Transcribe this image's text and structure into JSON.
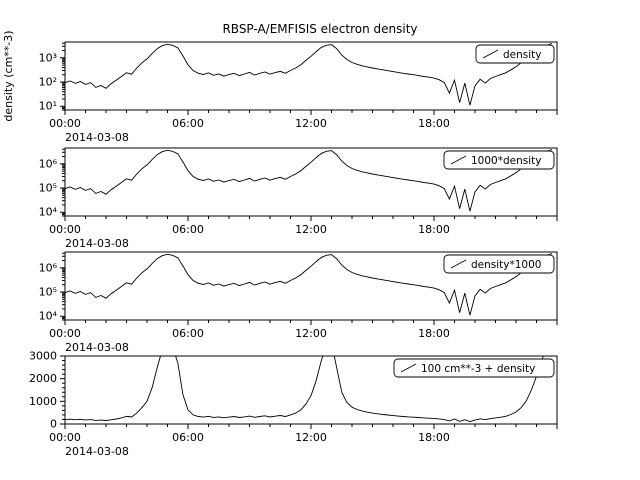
{
  "title": "RBSP-A/EMFISIS  electron density",
  "colors": {
    "line": "#000000",
    "background": "#ffffff"
  },
  "chart_data": {
    "type": "line",
    "title": "RBSP-A/EMFISIS  electron density",
    "x_date_label": "2014-03-08",
    "x_unit": "time (hours UT)",
    "x_start_hours": 0,
    "x_step_hours": 0.25,
    "x_range_hours": [
      0,
      24
    ],
    "x_ticks": [
      {
        "hour": 0,
        "label": "00:00"
      },
      {
        "hour": 6,
        "label": "06:00"
      },
      {
        "hour": 12,
        "label": "12:00"
      },
      {
        "hour": 18,
        "label": "18:00"
      }
    ],
    "density_cm3": [
      95,
      110,
      88,
      105,
      80,
      95,
      60,
      72,
      55,
      85,
      120,
      170,
      240,
      210,
      380,
      620,
      900,
      1500,
      2400,
      3200,
      3600,
      3300,
      2600,
      1200,
      520,
      300,
      230,
      205,
      240,
      190,
      215,
      175,
      205,
      230,
      185,
      215,
      250,
      195,
      230,
      260,
      210,
      245,
      275,
      230,
      300,
      380,
      520,
      780,
      1150,
      1800,
      2700,
      3300,
      3500,
      2400,
      1300,
      850,
      640,
      540,
      470,
      420,
      380,
      350,
      320,
      295,
      270,
      250,
      230,
      215,
      200,
      185,
      170,
      158,
      145,
      125,
      95,
      35,
      120,
      14,
      90,
      11,
      70,
      130,
      90,
      140,
      170,
      200,
      240,
      320,
      430,
      620,
      920,
      1400,
      2000,
      2700,
      3300,
      3900
    ],
    "panels": [
      {
        "legend_label": "density",
        "ylabel": "density (cm**-3)",
        "transform": "identity",
        "scale": "log",
        "ymin": 7,
        "ymax": 4500,
        "yticks": [
          {
            "value": 10,
            "label": "10¹"
          },
          {
            "value": 100,
            "label": "10²"
          },
          {
            "value": 1000,
            "label": "10³"
          }
        ],
        "date_label": "2014-03-08"
      },
      {
        "legend_label": "1000*density",
        "ylabel": "",
        "transform": "times1000",
        "scale": "log",
        "ymin": 7000,
        "ymax": 4500000,
        "yticks": [
          {
            "value": 10000,
            "label": "10⁴"
          },
          {
            "value": 100000,
            "label": "10⁵"
          },
          {
            "value": 1000000,
            "label": "10⁶"
          }
        ],
        "date_label": "2014-03-08"
      },
      {
        "legend_label": "density*1000",
        "ylabel": "",
        "transform": "times1000",
        "scale": "log",
        "ymin": 7000,
        "ymax": 4500000,
        "yticks": [
          {
            "value": 10000,
            "label": "10⁴"
          },
          {
            "value": 100000,
            "label": "10⁵"
          },
          {
            "value": 1000000,
            "label": "10⁶"
          }
        ],
        "date_label": "2014-03-08"
      },
      {
        "legend_label": "100 cm**-3 + density",
        "ylabel": "",
        "transform": "plus100",
        "scale": "linear",
        "ymin": 0,
        "ymax": 3000,
        "yticks": [
          {
            "value": 0,
            "label": "0"
          },
          {
            "value": 1000,
            "label": "1000"
          },
          {
            "value": 2000,
            "label": "2000"
          },
          {
            "value": 3000,
            "label": "3000"
          }
        ],
        "date_label": "2014-03-08"
      }
    ],
    "legend_position": "upper right",
    "grid": false
  }
}
